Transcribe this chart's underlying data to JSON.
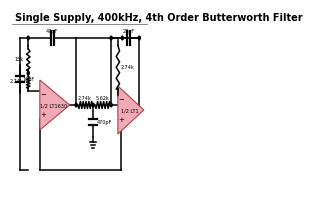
{
  "title": "Single Supply, 400kHz, 4th Order Butterworth Filter",
  "title_fontsize": 7.0,
  "bg_color": "#ffffff",
  "op_amp_fill": "#f2aab5",
  "op_amp_edge": "#b04050",
  "line_color": "#000000",
  "line_width": 1.1,
  "labels": {
    "cap1": "47pF",
    "res_fb1": "2.74k",
    "cap2": "22pF",
    "res_ser": "2.74k",
    "res_ser2": "5.62k",
    "cap3": "470pF",
    "opamp1": "1/2 LT1630",
    "opamp2": "1/2 LT1",
    "res_in1": "15k",
    "res_in2": "2.74k",
    "cap_in": "10pF"
  }
}
